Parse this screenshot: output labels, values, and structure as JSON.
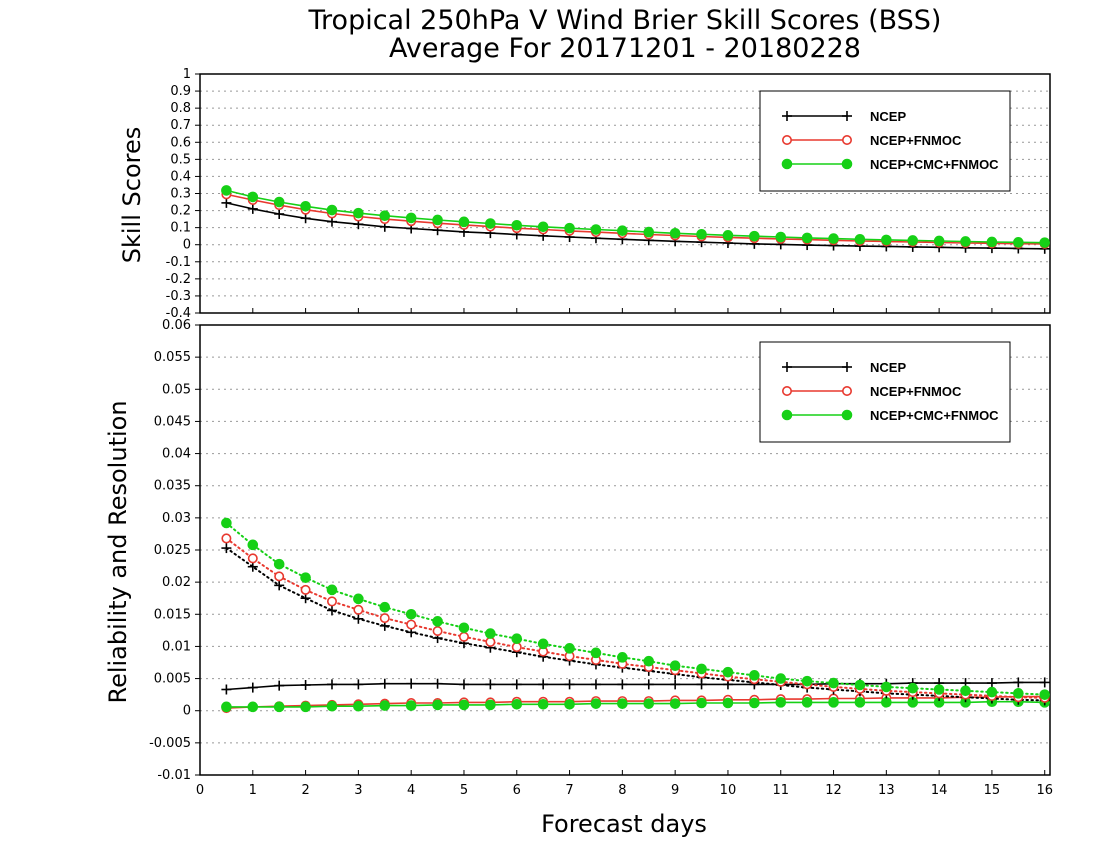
{
  "titles": {
    "line1": "Tropical 250hPa V Wind Brier Skill Scores (BSS)",
    "line2": "Average For 20171201 - 20180228"
  },
  "colors": {
    "NCEP": "#000000",
    "NCEP+FNMOC": "#e8392f",
    "NCEP+CMC+FNMOC": "#16d016"
  },
  "chart_data": [
    {
      "type": "line",
      "ylabel": "Skill Scores",
      "xlabel": "",
      "xlim": [
        0,
        16.1
      ],
      "ylim": [
        -0.4,
        1
      ],
      "yticks": [
        -0.4,
        -0.3,
        -0.2,
        -0.1,
        0,
        0.1,
        0.2,
        0.3,
        0.4,
        0.5,
        0.6,
        0.7,
        0.8,
        0.9,
        1
      ],
      "ytick_labels": [
        "-0.4",
        "-0.3",
        "-0.2",
        "-0.1",
        "0",
        "0.1",
        "0.2",
        "0.3",
        "0.4",
        "0.5",
        "0.6",
        "0.7",
        "0.8",
        "0.9",
        "1"
      ],
      "grid": true,
      "legend": "top-right",
      "x": [
        0.5,
        1,
        1.5,
        2,
        2.5,
        3,
        3.5,
        4,
        4.5,
        5,
        5.5,
        6,
        6.5,
        7,
        7.5,
        8,
        8.5,
        9,
        9.5,
        10,
        10.5,
        11,
        11.5,
        12,
        12.5,
        13,
        13.5,
        14,
        14.5,
        15,
        15.5,
        16
      ],
      "series": [
        {
          "name": "NCEP",
          "marker": "plus",
          "style": "solid",
          "values": [
            0.245,
            0.21,
            0.18,
            0.155,
            0.135,
            0.12,
            0.105,
            0.095,
            0.085,
            0.075,
            0.068,
            0.06,
            0.052,
            0.045,
            0.038,
            0.032,
            0.026,
            0.02,
            0.015,
            0.01,
            0.005,
            0.002,
            -0.002,
            -0.005,
            -0.008,
            -0.01,
            -0.013,
            -0.015,
            -0.018,
            -0.02,
            -0.022,
            -0.024
          ]
        },
        {
          "name": "NCEP+FNMOC",
          "marker": "open-circle",
          "style": "solid",
          "values": [
            0.295,
            0.262,
            0.232,
            0.205,
            0.183,
            0.165,
            0.15,
            0.138,
            0.126,
            0.116,
            0.106,
            0.097,
            0.089,
            0.081,
            0.074,
            0.067,
            0.06,
            0.054,
            0.048,
            0.043,
            0.038,
            0.034,
            0.03,
            0.026,
            0.022,
            0.019,
            0.016,
            0.013,
            0.01,
            0.008,
            0.006,
            0.005
          ]
        },
        {
          "name": "NCEP+CMC+FNMOC",
          "marker": "filled-circle",
          "style": "solid",
          "values": [
            0.318,
            0.28,
            0.25,
            0.225,
            0.203,
            0.185,
            0.17,
            0.157,
            0.145,
            0.134,
            0.124,
            0.114,
            0.105,
            0.097,
            0.089,
            0.082,
            0.074,
            0.067,
            0.061,
            0.055,
            0.05,
            0.045,
            0.04,
            0.036,
            0.032,
            0.028,
            0.025,
            0.022,
            0.019,
            0.016,
            0.014,
            0.012
          ]
        }
      ]
    },
    {
      "type": "line",
      "ylabel": "Reliability and Resolution",
      "xlabel": "Forecast days",
      "xlim": [
        0,
        16.1
      ],
      "ylim": [
        -0.01,
        0.06
      ],
      "xticks": [
        0,
        1,
        2,
        3,
        4,
        5,
        6,
        7,
        8,
        9,
        10,
        11,
        12,
        13,
        14,
        15,
        16
      ],
      "xtick_labels": [
        "0",
        "1",
        "2",
        "3",
        "4",
        "5",
        "6",
        "7",
        "8",
        "9",
        "10",
        "11",
        "12",
        "13",
        "14",
        "15",
        "16"
      ],
      "yticks": [
        -0.01,
        -0.005,
        0,
        0.005,
        0.01,
        0.015,
        0.02,
        0.025,
        0.03,
        0.035,
        0.04,
        0.045,
        0.05,
        0.055,
        0.06
      ],
      "ytick_labels": [
        "-0.01",
        "-0.005",
        "0",
        "0.005",
        "0.01",
        "0.015",
        "0.02",
        "0.025",
        "0.03",
        "0.035",
        "0.04",
        "0.045",
        "0.05",
        "0.055",
        "0.06"
      ],
      "grid": true,
      "legend": "top-right",
      "x": [
        0.5,
        1,
        1.5,
        2,
        2.5,
        3,
        3.5,
        4,
        4.5,
        5,
        5.5,
        6,
        6.5,
        7,
        7.5,
        8,
        8.5,
        9,
        9.5,
        10,
        10.5,
        11,
        11.5,
        12,
        12.5,
        13,
        13.5,
        14,
        14.5,
        15,
        15.5,
        16
      ],
      "series": [
        {
          "name": "NCEP",
          "component": "reliability",
          "marker": "plus",
          "style": "solid",
          "values": [
            0.0033,
            0.0036,
            0.0039,
            0.004,
            0.0041,
            0.0041,
            0.0042,
            0.0042,
            0.0042,
            0.0041,
            0.0041,
            0.0041,
            0.0041,
            0.0041,
            0.0041,
            0.0041,
            0.0041,
            0.0041,
            0.0041,
            0.0041,
            0.0041,
            0.0041,
            0.0041,
            0.0042,
            0.0042,
            0.0042,
            0.0043,
            0.0043,
            0.0043,
            0.0043,
            0.0044,
            0.0044
          ]
        },
        {
          "name": "NCEP+FNMOC",
          "component": "reliability",
          "marker": "open-circle",
          "style": "solid",
          "values": [
            0.0004,
            0.0006,
            0.0007,
            0.0008,
            0.0009,
            0.001,
            0.0011,
            0.0012,
            0.0012,
            0.0013,
            0.0013,
            0.0014,
            0.0014,
            0.0014,
            0.0015,
            0.0015,
            0.0015,
            0.0016,
            0.0016,
            0.0017,
            0.0017,
            0.0018,
            0.0018,
            0.0019,
            0.0019,
            0.002,
            0.002,
            0.002,
            0.0021,
            0.0021,
            0.0022,
            0.0022
          ]
        },
        {
          "name": "NCEP+CMC+FNMOC",
          "component": "reliability",
          "marker": "filled-circle",
          "style": "solid",
          "values": [
            0.0006,
            0.0006,
            0.0006,
            0.0006,
            0.0007,
            0.0007,
            0.0008,
            0.0008,
            0.0009,
            0.0009,
            0.0009,
            0.001,
            0.001,
            0.001,
            0.0011,
            0.0011,
            0.0011,
            0.0011,
            0.0012,
            0.0012,
            0.0012,
            0.0013,
            0.0013,
            0.0013,
            0.0013,
            0.0013,
            0.0013,
            0.0013,
            0.0013,
            0.0014,
            0.0014,
            0.0013
          ]
        },
        {
          "name": "NCEP",
          "component": "resolution",
          "marker": "plus",
          "style": "dotted",
          "values": [
            0.0253,
            0.0224,
            0.0195,
            0.0175,
            0.0156,
            0.0143,
            0.0132,
            0.0122,
            0.0113,
            0.0105,
            0.0098,
            0.0091,
            0.0084,
            0.0078,
            0.0072,
            0.0067,
            0.0062,
            0.0057,
            0.0052,
            0.0048,
            0.0044,
            0.004,
            0.0036,
            0.0033,
            0.003,
            0.0027,
            0.0025,
            0.0023,
            0.0021,
            0.0019,
            0.0017,
            0.0016
          ]
        },
        {
          "name": "NCEP+FNMOC",
          "component": "resolution",
          "marker": "open-circle",
          "style": "dotted",
          "values": [
            0.0268,
            0.0237,
            0.0209,
            0.0188,
            0.017,
            0.0157,
            0.0144,
            0.0134,
            0.0124,
            0.0115,
            0.0107,
            0.0099,
            0.0092,
            0.0085,
            0.0079,
            0.0073,
            0.0068,
            0.0063,
            0.0058,
            0.0053,
            0.0049,
            0.0045,
            0.0041,
            0.0037,
            0.0034,
            0.0031,
            0.0029,
            0.0027,
            0.0025,
            0.0023,
            0.0021,
            0.002
          ]
        },
        {
          "name": "NCEP+CMC+FNMOC",
          "component": "resolution",
          "marker": "filled-circle",
          "style": "dotted",
          "values": [
            0.0292,
            0.0258,
            0.0228,
            0.0207,
            0.0188,
            0.0174,
            0.0161,
            0.015,
            0.0139,
            0.0129,
            0.012,
            0.0112,
            0.0104,
            0.0097,
            0.009,
            0.0083,
            0.0077,
            0.007,
            0.0065,
            0.006,
            0.0055,
            0.005,
            0.0046,
            0.0043,
            0.004,
            0.0037,
            0.0035,
            0.0033,
            0.0031,
            0.0029,
            0.0027,
            0.0025
          ]
        }
      ]
    }
  ]
}
